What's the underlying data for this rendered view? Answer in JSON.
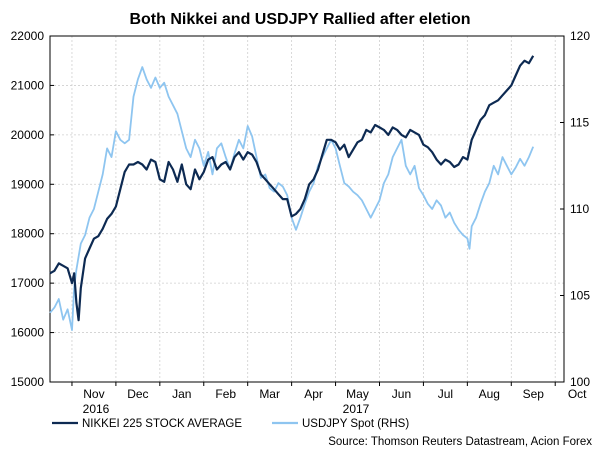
{
  "chart_data": {
    "type": "line",
    "title": "Both Nikkei and USDJPY Rallied after eletion",
    "x_ticks": [
      "Nov",
      "Dec",
      "Jan",
      "Feb",
      "Mar",
      "Apr",
      "May",
      "Jun",
      "Jul",
      "Aug",
      "Sep",
      "Oct"
    ],
    "year_labels": [
      "2016",
      "2017"
    ],
    "left_axis": {
      "range": [
        15000,
        22000
      ],
      "ticks": [
        "15000",
        "16000",
        "17000",
        "18000",
        "19000",
        "20000",
        "21000",
        "22000"
      ]
    },
    "right_axis": {
      "range": [
        100,
        120
      ],
      "ticks": [
        "100",
        "105",
        "110",
        "115",
        "120"
      ]
    },
    "x_range": [
      9.5,
      21.2
    ],
    "series": [
      {
        "name": "NIKKEI 225 STOCK AVERAGE",
        "axis": "left",
        "color": "#0d2a52",
        "points": [
          [
            9.5,
            17200
          ],
          [
            9.6,
            17250
          ],
          [
            9.7,
            17400
          ],
          [
            9.8,
            17350
          ],
          [
            9.9,
            17300
          ],
          [
            10.0,
            17000
          ],
          [
            10.05,
            17200
          ],
          [
            10.1,
            16600
          ],
          [
            10.15,
            16250
          ],
          [
            10.2,
            16900
          ],
          [
            10.3,
            17500
          ],
          [
            10.4,
            17700
          ],
          [
            10.5,
            17900
          ],
          [
            10.6,
            17950
          ],
          [
            10.7,
            18100
          ],
          [
            10.8,
            18300
          ],
          [
            10.9,
            18400
          ],
          [
            11.0,
            18550
          ],
          [
            11.1,
            18900
          ],
          [
            11.2,
            19250
          ],
          [
            11.3,
            19400
          ],
          [
            11.4,
            19400
          ],
          [
            11.5,
            19450
          ],
          [
            11.6,
            19400
          ],
          [
            11.7,
            19300
          ],
          [
            11.8,
            19500
          ],
          [
            11.9,
            19450
          ],
          [
            12.0,
            19100
          ],
          [
            12.1,
            19050
          ],
          [
            12.2,
            19450
          ],
          [
            12.3,
            19300
          ],
          [
            12.4,
            19050
          ],
          [
            12.5,
            19400
          ],
          [
            12.6,
            19000
          ],
          [
            12.7,
            18900
          ],
          [
            12.8,
            19300
          ],
          [
            12.9,
            19100
          ],
          [
            13.0,
            19250
          ],
          [
            13.1,
            19500
          ],
          [
            13.2,
            19550
          ],
          [
            13.3,
            19300
          ],
          [
            13.4,
            19400
          ],
          [
            13.5,
            19450
          ],
          [
            13.6,
            19300
          ],
          [
            13.7,
            19550
          ],
          [
            13.8,
            19650
          ],
          [
            13.9,
            19500
          ],
          [
            14.0,
            19650
          ],
          [
            14.1,
            19600
          ],
          [
            14.2,
            19450
          ],
          [
            14.3,
            19200
          ],
          [
            14.4,
            19100
          ],
          [
            14.5,
            19000
          ],
          [
            14.6,
            18900
          ],
          [
            14.7,
            18800
          ],
          [
            14.8,
            18700
          ],
          [
            14.9,
            18700
          ],
          [
            15.0,
            18350
          ],
          [
            15.1,
            18400
          ],
          [
            15.2,
            18500
          ],
          [
            15.3,
            18700
          ],
          [
            15.4,
            19000
          ],
          [
            15.5,
            19100
          ],
          [
            15.6,
            19300
          ],
          [
            15.7,
            19600
          ],
          [
            15.8,
            19900
          ],
          [
            15.9,
            19900
          ],
          [
            16.0,
            19850
          ],
          [
            16.1,
            19700
          ],
          [
            16.2,
            19800
          ],
          [
            16.3,
            19550
          ],
          [
            16.4,
            19700
          ],
          [
            16.5,
            19850
          ],
          [
            16.6,
            19900
          ],
          [
            16.7,
            20100
          ],
          [
            16.8,
            20050
          ],
          [
            16.9,
            20200
          ],
          [
            17.0,
            20150
          ],
          [
            17.1,
            20100
          ],
          [
            17.2,
            20000
          ],
          [
            17.3,
            20150
          ],
          [
            17.4,
            20100
          ],
          [
            17.5,
            20000
          ],
          [
            17.6,
            19950
          ],
          [
            17.7,
            20100
          ],
          [
            17.8,
            20050
          ],
          [
            17.9,
            20000
          ],
          [
            18.0,
            19800
          ],
          [
            18.1,
            19750
          ],
          [
            18.2,
            19650
          ],
          [
            18.3,
            19500
          ],
          [
            18.4,
            19400
          ],
          [
            18.5,
            19500
          ],
          [
            18.6,
            19450
          ],
          [
            18.7,
            19350
          ],
          [
            18.8,
            19400
          ],
          [
            18.9,
            19550
          ],
          [
            19.0,
            19500
          ],
          [
            19.1,
            19900
          ],
          [
            19.2,
            20100
          ],
          [
            19.3,
            20300
          ],
          [
            19.4,
            20400
          ],
          [
            19.5,
            20600
          ],
          [
            19.6,
            20650
          ],
          [
            19.7,
            20700
          ],
          [
            19.8,
            20800
          ],
          [
            19.9,
            20900
          ],
          [
            20.0,
            21000
          ],
          [
            20.1,
            21200
          ],
          [
            20.2,
            21400
          ],
          [
            20.3,
            21500
          ],
          [
            20.4,
            21450
          ],
          [
            20.5,
            21600
          ]
        ]
      },
      {
        "name": "USDJPY Spot (RHS)",
        "axis": "right",
        "color": "#8ec5f0",
        "points": [
          [
            9.5,
            104.0
          ],
          [
            9.6,
            104.3
          ],
          [
            9.7,
            104.8
          ],
          [
            9.8,
            103.6
          ],
          [
            9.9,
            104.2
          ],
          [
            10.0,
            103.0
          ],
          [
            10.05,
            105.5
          ],
          [
            10.1,
            106.5
          ],
          [
            10.2,
            108.0
          ],
          [
            10.3,
            108.5
          ],
          [
            10.4,
            109.5
          ],
          [
            10.5,
            110.0
          ],
          [
            10.6,
            111.0
          ],
          [
            10.7,
            112.0
          ],
          [
            10.8,
            113.5
          ],
          [
            10.9,
            113.0
          ],
          [
            11.0,
            114.5
          ],
          [
            11.1,
            114.0
          ],
          [
            11.2,
            113.8
          ],
          [
            11.3,
            114.0
          ],
          [
            11.4,
            116.5
          ],
          [
            11.5,
            117.5
          ],
          [
            11.6,
            118.2
          ],
          [
            11.7,
            117.5
          ],
          [
            11.8,
            117.0
          ],
          [
            11.9,
            117.6
          ],
          [
            12.0,
            117.0
          ],
          [
            12.1,
            117.3
          ],
          [
            12.2,
            116.5
          ],
          [
            12.3,
            116.0
          ],
          [
            12.4,
            115.5
          ],
          [
            12.5,
            114.5
          ],
          [
            12.6,
            113.5
          ],
          [
            12.7,
            113.0
          ],
          [
            12.8,
            114.0
          ],
          [
            12.9,
            113.5
          ],
          [
            13.0,
            112.5
          ],
          [
            13.1,
            113.3
          ],
          [
            13.2,
            112.0
          ],
          [
            13.3,
            113.5
          ],
          [
            13.4,
            113.8
          ],
          [
            13.5,
            113.0
          ],
          [
            13.6,
            112.3
          ],
          [
            13.7,
            113.2
          ],
          [
            13.8,
            114.0
          ],
          [
            13.9,
            113.5
          ],
          [
            14.0,
            114.8
          ],
          [
            14.1,
            114.2
          ],
          [
            14.2,
            113.0
          ],
          [
            14.3,
            111.8
          ],
          [
            14.4,
            112.0
          ],
          [
            14.5,
            111.2
          ],
          [
            14.6,
            111.0
          ],
          [
            14.7,
            111.5
          ],
          [
            14.8,
            111.3
          ],
          [
            14.9,
            110.8
          ],
          [
            15.0,
            109.5
          ],
          [
            15.1,
            108.8
          ],
          [
            15.2,
            109.5
          ],
          [
            15.3,
            110.3
          ],
          [
            15.4,
            111.0
          ],
          [
            15.5,
            111.5
          ],
          [
            15.6,
            112.5
          ],
          [
            15.7,
            113.0
          ],
          [
            15.8,
            113.5
          ],
          [
            15.9,
            114.0
          ],
          [
            16.0,
            113.5
          ],
          [
            16.1,
            112.5
          ],
          [
            16.2,
            111.5
          ],
          [
            16.3,
            111.3
          ],
          [
            16.4,
            111.0
          ],
          [
            16.5,
            110.8
          ],
          [
            16.6,
            110.5
          ],
          [
            16.7,
            110.0
          ],
          [
            16.8,
            109.5
          ],
          [
            16.9,
            110.0
          ],
          [
            17.0,
            110.5
          ],
          [
            17.1,
            111.5
          ],
          [
            17.2,
            112.0
          ],
          [
            17.3,
            113.0
          ],
          [
            17.4,
            113.5
          ],
          [
            17.5,
            114.0
          ],
          [
            17.6,
            112.5
          ],
          [
            17.7,
            112.0
          ],
          [
            17.8,
            112.5
          ],
          [
            17.9,
            111.2
          ],
          [
            18.0,
            110.8
          ],
          [
            18.1,
            110.3
          ],
          [
            18.2,
            110.0
          ],
          [
            18.3,
            110.5
          ],
          [
            18.4,
            110.2
          ],
          [
            18.5,
            109.5
          ],
          [
            18.6,
            109.8
          ],
          [
            18.7,
            109.2
          ],
          [
            18.8,
            108.8
          ],
          [
            18.9,
            108.5
          ],
          [
            19.0,
            108.3
          ],
          [
            19.05,
            107.7
          ],
          [
            19.1,
            109.0
          ],
          [
            19.2,
            109.5
          ],
          [
            19.3,
            110.3
          ],
          [
            19.4,
            111.0
          ],
          [
            19.5,
            111.5
          ],
          [
            19.6,
            112.5
          ],
          [
            19.7,
            112.0
          ],
          [
            19.8,
            113.0
          ],
          [
            19.9,
            112.5
          ],
          [
            20.0,
            112.0
          ],
          [
            20.1,
            112.4
          ],
          [
            20.2,
            112.9
          ],
          [
            20.3,
            112.5
          ],
          [
            20.4,
            113.0
          ],
          [
            20.5,
            113.6
          ]
        ]
      }
    ],
    "source": "Source: Thomson Reuters Datastream, Acion Forex"
  }
}
